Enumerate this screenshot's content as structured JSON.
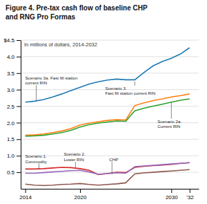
{
  "chart_data": {
    "type": "line",
    "title": [
      "Figure 4. Pre-tax cash flow of baseline CHP",
      "and RNG Pro Formas"
    ],
    "subtitle": "In millions of dollars, 2014-2032",
    "x": [
      2014,
      2015,
      2016,
      2017,
      2018,
      2019,
      2020,
      2021,
      2022,
      2023,
      2024,
      2025,
      2026,
      2027,
      2028,
      2029,
      2030,
      2031,
      2032
    ],
    "series": [
      {
        "values": [
          2.62,
          2.65,
          2.7,
          2.78,
          2.87,
          2.97,
          3.07,
          3.17,
          3.24,
          3.29,
          3.32,
          3.3,
          3.3,
          3.52,
          3.72,
          3.85,
          3.95,
          4.08,
          4.27
        ]
      },
      {
        "values": [
          1.62,
          1.63,
          1.66,
          1.7,
          1.75,
          1.82,
          1.93,
          1.99,
          2.03,
          2.07,
          2.09,
          2.08,
          2.52,
          2.6,
          2.67,
          2.72,
          2.78,
          2.82,
          2.87
        ]
      },
      {
        "values": [
          1.59,
          1.6,
          1.62,
          1.66,
          1.7,
          1.77,
          1.87,
          1.94,
          1.99,
          2.02,
          2.05,
          2.04,
          2.36,
          2.44,
          2.5,
          2.56,
          2.62,
          2.68,
          2.72
        ]
      },
      {
        "values": [
          0.6,
          0.6,
          0.61,
          0.63,
          0.65,
          0.64,
          0.61,
          0.56,
          0.43,
          0.46,
          0.5,
          0.49,
          0.65,
          0.68,
          0.7,
          0.72,
          0.74,
          0.77,
          0.79
        ]
      },
      {
        "values": [
          0.47,
          0.47,
          0.49,
          0.51,
          0.53,
          0.55,
          0.56,
          0.51,
          0.44,
          0.46,
          0.49,
          0.47,
          0.67,
          0.69,
          0.71,
          0.73,
          0.75,
          0.77,
          0.79
        ]
      },
      {
        "values": [
          0.14,
          0.11,
          0.1,
          0.11,
          0.13,
          0.14,
          0.16,
          0.13,
          0.11,
          0.13,
          0.15,
          0.18,
          0.45,
          0.48,
          0.5,
          0.52,
          0.54,
          0.56,
          0.58
        ]
      }
    ],
    "xlim": [
      2013.5,
      2033.0
    ],
    "xticks": [
      2014,
      2020,
      2030,
      {
        "value": 2032,
        "label": "’32"
      }
    ],
    "ylim": [
      0,
      4.5
    ],
    "yticks": [
      0.5,
      {
        "value": 1.0,
        "label": "1.0"
      },
      1.5,
      {
        "value": 2.0,
        "label": "2.0"
      },
      2.5,
      {
        "value": 3.0,
        "label": "3.0"
      },
      3.5,
      {
        "value": 4.0,
        "label": "4.0"
      },
      {
        "value": 4.5,
        "label": "$4.5"
      }
    ],
    "grid": true,
    "annotations": [
      {
        "text": [
          "Scenario 3a. Fast fill station",
          "current RIN"
        ],
        "x": 2015.2,
        "y": 2.66
      },
      {
        "text": [
          "Scenario 3.",
          "Fast fill station current RIN"
        ],
        "x": 2026.0,
        "y": 3.25
      },
      {
        "text": [
          "Scenario 2a.",
          "Current RIN"
        ],
        "x": 2030.0,
        "y": 2.62
      },
      {
        "text": [
          "Scenario 1.",
          "Commodity"
        ],
        "x": 2015.5,
        "y": 0.58
      },
      {
        "text": [
          "Scenario 2.",
          "Lower RIN"
        ],
        "x": 2019.5,
        "y": 0.64
      },
      {
        "text": [
          "CHP"
        ],
        "x": 2023.5,
        "y": 0.44
      }
    ]
  }
}
